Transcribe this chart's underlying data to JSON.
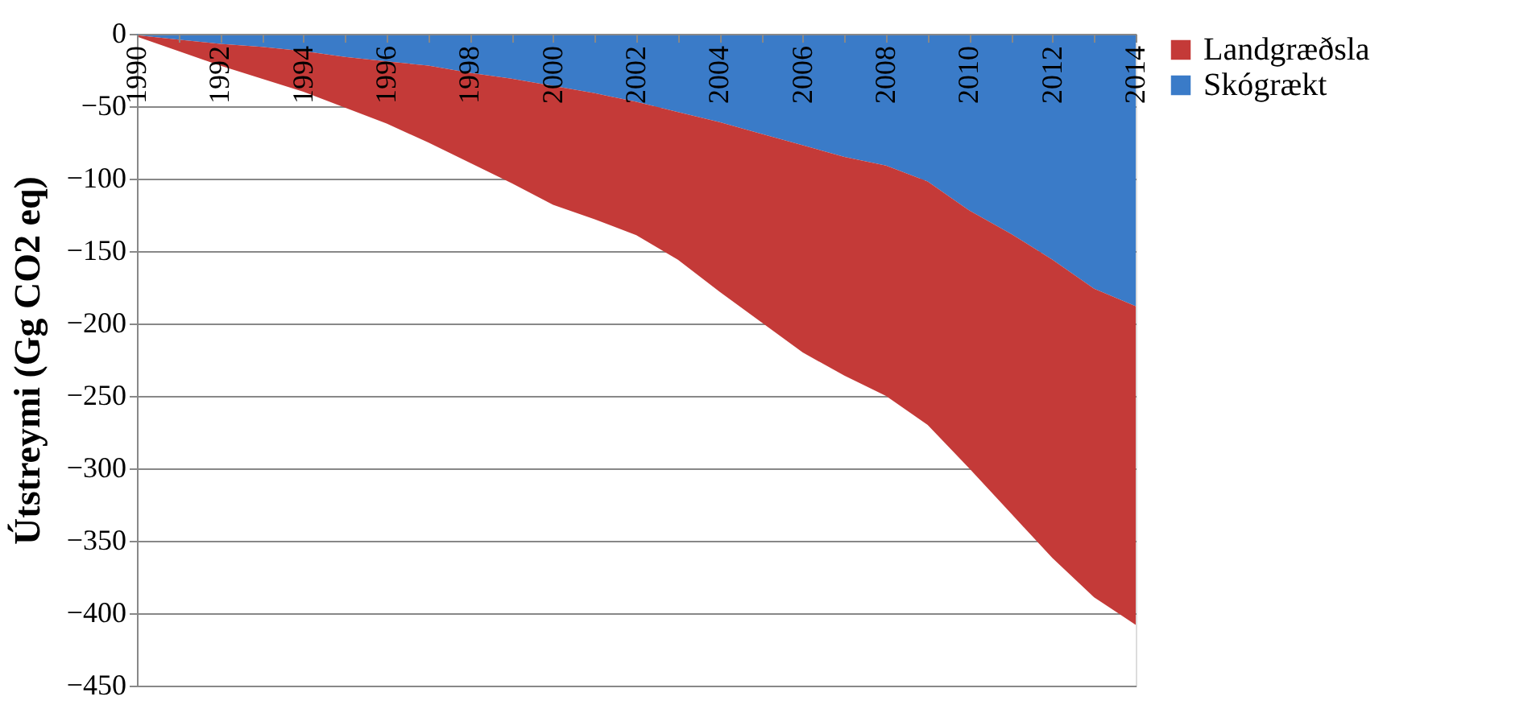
{
  "chart_data": {
    "type": "area",
    "stacked": true,
    "ylabel": "Útstreymi (Gg CO2 eq)",
    "categories": [
      "1990",
      null,
      "1992",
      null,
      "1994",
      null,
      "1996",
      null,
      "1998",
      null,
      "2000",
      null,
      "2002",
      null,
      "2004",
      null,
      "2006",
      null,
      "2008",
      null,
      "2010",
      null,
      "2012",
      null,
      "2014"
    ],
    "series": [
      {
        "name": "Skógrækt",
        "color": "#3a7bc8",
        "values": [
          -1,
          -4,
          -7,
          -9,
          -12,
          -16,
          -19,
          -22,
          -27,
          -31,
          -36,
          -41,
          -47,
          -54,
          -61,
          -69,
          -77,
          -85,
          -91,
          -102,
          -122,
          -138,
          -156,
          -176,
          -188
        ]
      },
      {
        "name": "Landgræðsla",
        "color": "#c43a38",
        "values": [
          -1,
          -8,
          -15,
          -22,
          -28,
          -35,
          -43,
          -53,
          -62,
          -72,
          -82,
          -87,
          -92,
          -102,
          -117,
          -130,
          -143,
          -151,
          -159,
          -168,
          -178,
          -193,
          -206,
          -213,
          -220
        ]
      }
    ],
    "ylim": [
      -450,
      0
    ],
    "yticks": [
      -450,
      -400,
      -350,
      -300,
      -250,
      -200,
      -150,
      -100,
      -50,
      0
    ],
    "grid": "y",
    "legend": "right"
  }
}
